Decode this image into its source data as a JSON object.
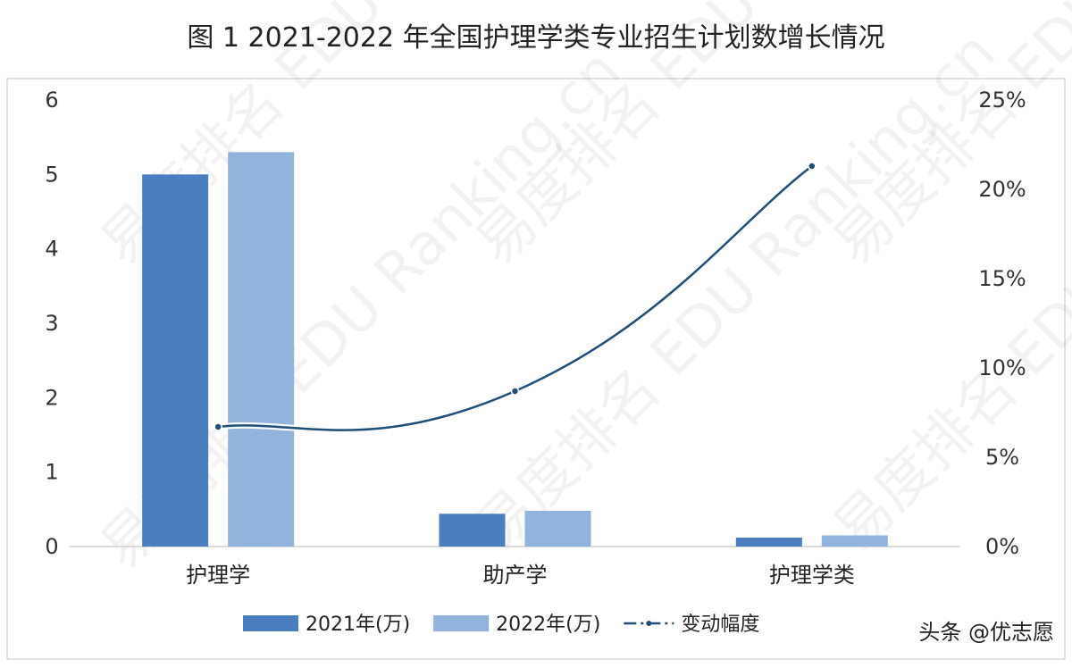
{
  "chart_data": {
    "type": "bar",
    "title": "图 1 2021-2022 年全国护理学类专业招生计划数增长情况",
    "categories": [
      "护理学",
      "助产学",
      "护理学类"
    ],
    "series": [
      {
        "name": "2021年(万)",
        "type": "bar",
        "axis": "left",
        "color": "#4a7ebf",
        "values": [
          5.0,
          0.44,
          0.12
        ]
      },
      {
        "name": "2022年(万)",
        "type": "bar",
        "axis": "left",
        "color": "#92b3db",
        "values": [
          5.3,
          0.48,
          0.15
        ]
      },
      {
        "name": "变动幅度",
        "type": "line",
        "axis": "right",
        "color": "#1f4e79",
        "values": [
          0.067,
          0.087,
          0.213
        ]
      }
    ],
    "y_left": {
      "min": 0,
      "max": 6,
      "ticks": [
        "0",
        "1",
        "2",
        "3",
        "4",
        "5",
        "6"
      ]
    },
    "y_right": {
      "min": 0,
      "max": 0.25,
      "ticks": [
        "0%",
        "5%",
        "10%",
        "15%",
        "20%",
        "25%"
      ]
    },
    "grid": false,
    "legend_position": "bottom"
  },
  "watermark_text": "易度排名 EDU Ranking.cn",
  "credit": "头条 @优志愿"
}
